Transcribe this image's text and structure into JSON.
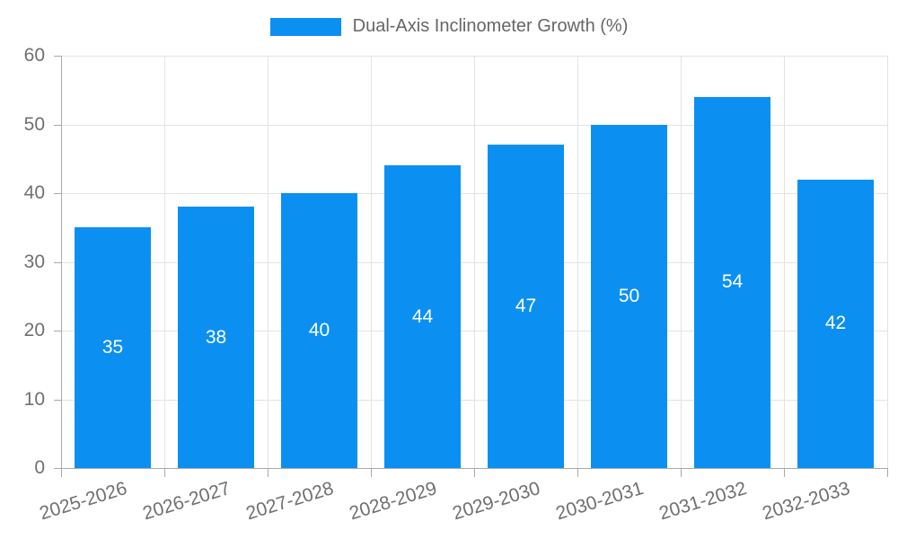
{
  "legend": {
    "label": "Dual-Axis Inclinometer Growth (%)"
  },
  "colors": {
    "bar": "#0b90f2",
    "grid": "#e3e3e3",
    "axis": "#a9a9a9",
    "tick_text": "#707070",
    "legend_text": "#666666",
    "value_label": "#ffffff",
    "background": "#ffffff"
  },
  "chart_data": {
    "type": "bar",
    "title": "Dual-Axis Inclinometer Growth (%)",
    "categories": [
      "2025-2026",
      "2026-2027",
      "2027-2028",
      "2028-2029",
      "2029-2030",
      "2030-2031",
      "2031-2032",
      "2032-2033"
    ],
    "values": [
      35,
      38,
      40,
      44,
      47,
      50,
      54,
      42
    ],
    "xlabel": "",
    "ylabel": "",
    "ylim": [
      0,
      60
    ],
    "yticks": [
      0,
      10,
      20,
      30,
      40,
      50,
      60
    ],
    "grid": true,
    "legend_position": "top",
    "x_label_rotation_deg": -17,
    "bar_value_labels": "inside-center"
  }
}
